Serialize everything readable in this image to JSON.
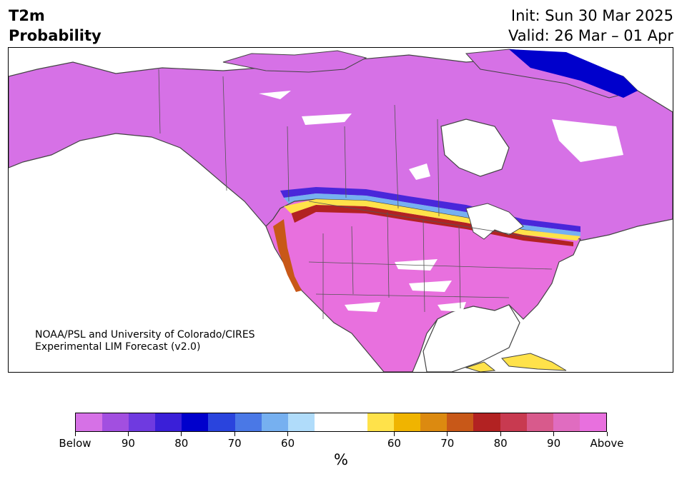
{
  "header": {
    "variable_line1": "T2m",
    "variable_line2": "Probability",
    "init_line": "Init: Sun 30 Mar 2025",
    "valid_line": "Valid: 26 Mar – 01 Apr"
  },
  "map": {
    "credit_line1": "NOAA/PSL and University of Colorado/CIRES",
    "credit_line2": "Experimental LIM Forecast (v2.0)",
    "region": "North America",
    "dominant_north": "Below normal (purple)",
    "dominant_south": "Above normal (pink)"
  },
  "colorbar": {
    "unit": "%",
    "colors": [
      "#d671e6",
      "#a24fe0",
      "#6f3ae0",
      "#3a1fd8",
      "#0000cc",
      "#2a44dd",
      "#4a78e6",
      "#76b0f0",
      "#b0dcfa",
      "#ffffff",
      "#ffffff",
      "#ffe24a",
      "#f0b400",
      "#dc8a10",
      "#c85818",
      "#b22222",
      "#c83a50",
      "#d85a8c",
      "#e06cc0",
      "#e870de"
    ],
    "tick_labels": [
      "Below",
      "90",
      "80",
      "70",
      "60",
      "60",
      "70",
      "80",
      "90",
      "Above"
    ]
  },
  "colors": {
    "below_strong": "#d671e6",
    "above_strong": "#e870de",
    "neutral": "#ffffff"
  }
}
